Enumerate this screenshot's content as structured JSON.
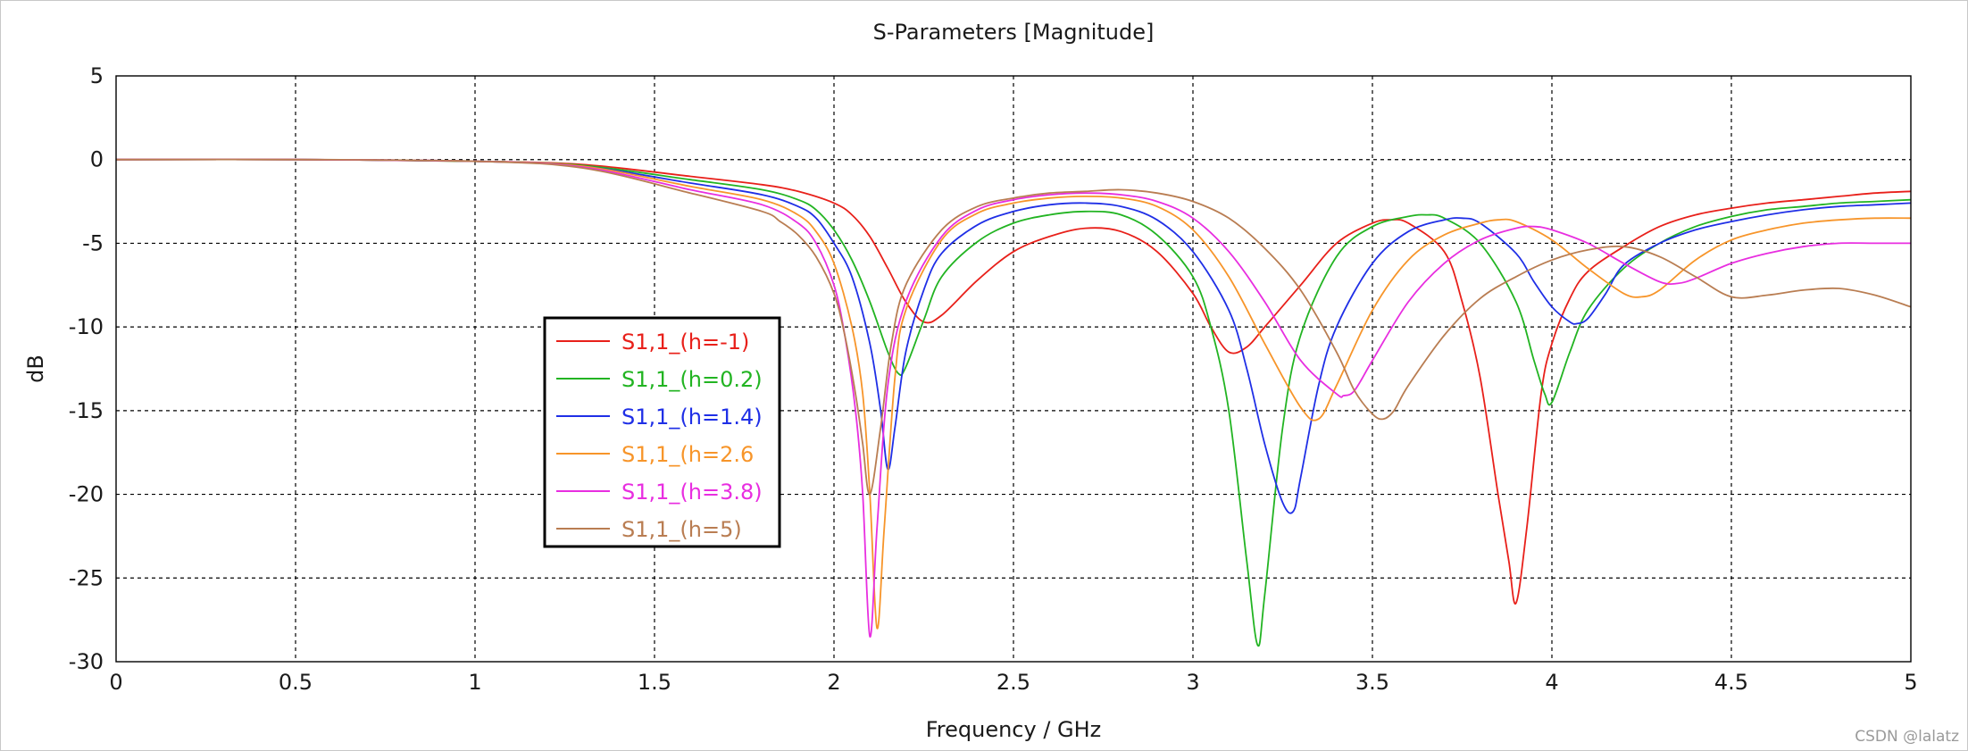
{
  "chart_data": {
    "type": "line",
    "title": "S-Parameters [Magnitude]",
    "xlabel": "Frequency / GHz",
    "ylabel": "dB",
    "xlim": [
      0,
      5
    ],
    "ylim": [
      -30,
      5
    ],
    "xticks": [
      0,
      0.5,
      1,
      1.5,
      2,
      2.5,
      3,
      3.5,
      4,
      4.5,
      5
    ],
    "xtick_labels": [
      "0",
      "0.5",
      "1",
      "1.5",
      "2",
      "2.5",
      "3",
      "3.5",
      "4",
      "4.5",
      "5"
    ],
    "yticks": [
      5,
      0,
      -5,
      -10,
      -15,
      -20,
      -25,
      -30
    ],
    "ytick_labels": [
      "5",
      "0",
      "-5",
      "-10",
      "-15",
      "-20",
      "-25",
      "-30"
    ],
    "grid": true,
    "legend_position": "left-middle",
    "series": [
      {
        "name": "S1,1_(h=-1)",
        "color": "#e8201a",
        "x": [
          0,
          0.5,
          1.0,
          1.3,
          1.6,
          1.8,
          1.9,
          2.0,
          2.05,
          2.1,
          2.15,
          2.2,
          2.25,
          2.3,
          2.4,
          2.5,
          2.6,
          2.7,
          2.8,
          2.9,
          3.0,
          3.05,
          3.1,
          3.15,
          3.2,
          3.3,
          3.4,
          3.5,
          3.55,
          3.6,
          3.7,
          3.75,
          3.8,
          3.85,
          3.88,
          3.9,
          3.93,
          3.97,
          4.0,
          4.05,
          4.1,
          4.2,
          4.3,
          4.4,
          4.5,
          4.6,
          4.7,
          4.8,
          4.9,
          5.0
        ],
        "y": [
          0,
          0,
          -0.1,
          -0.3,
          -1.0,
          -1.5,
          -1.9,
          -2.6,
          -3.3,
          -4.6,
          -6.5,
          -8.5,
          -9.7,
          -9.3,
          -7.2,
          -5.5,
          -4.6,
          -4.1,
          -4.3,
          -5.5,
          -8.0,
          -10.0,
          -11.5,
          -11.2,
          -10.0,
          -7.5,
          -5.0,
          -3.8,
          -3.6,
          -3.8,
          -5.5,
          -8.5,
          -13.0,
          -20.0,
          -24.0,
          -26.5,
          -22.0,
          -14.0,
          -11.0,
          -8.3,
          -6.7,
          -5.2,
          -4.0,
          -3.3,
          -2.9,
          -2.6,
          -2.4,
          -2.2,
          -2.0,
          -1.9
        ]
      },
      {
        "name": "S1,1_(h=0.2)",
        "color": "#22b422",
        "x": [
          0,
          0.5,
          1.0,
          1.3,
          1.6,
          1.8,
          1.9,
          1.95,
          2.0,
          2.05,
          2.1,
          2.15,
          2.18,
          2.2,
          2.25,
          2.3,
          2.4,
          2.5,
          2.6,
          2.7,
          2.8,
          2.9,
          3.0,
          3.05,
          3.1,
          3.15,
          3.18,
          3.2,
          3.25,
          3.3,
          3.4,
          3.5,
          3.6,
          3.65,
          3.7,
          3.8,
          3.9,
          3.95,
          3.98,
          4.0,
          4.05,
          4.1,
          4.2,
          4.3,
          4.4,
          4.5,
          4.6,
          4.7,
          4.8,
          4.9,
          5.0
        ],
        "y": [
          0,
          0,
          -0.1,
          -0.35,
          -1.2,
          -1.8,
          -2.4,
          -3.0,
          -4.2,
          -6.0,
          -8.5,
          -11.5,
          -12.8,
          -12.4,
          -9.6,
          -7.0,
          -4.9,
          -3.8,
          -3.3,
          -3.1,
          -3.3,
          -4.5,
          -7.0,
          -10.0,
          -15.0,
          -24.0,
          -29.0,
          -26.0,
          -16.0,
          -10.5,
          -5.8,
          -4.0,
          -3.4,
          -3.3,
          -3.5,
          -5.0,
          -8.5,
          -12.0,
          -14.0,
          -14.5,
          -11.5,
          -9.0,
          -6.5,
          -5.0,
          -4.0,
          -3.4,
          -3.0,
          -2.8,
          -2.6,
          -2.5,
          -2.4
        ]
      },
      {
        "name": "S1,1_(h=1.4)",
        "color": "#1f2fe6",
        "x": [
          0,
          0.5,
          1.0,
          1.3,
          1.6,
          1.8,
          1.9,
          1.95,
          2.0,
          2.05,
          2.1,
          2.13,
          2.15,
          2.17,
          2.2,
          2.25,
          2.3,
          2.4,
          2.5,
          2.6,
          2.7,
          2.8,
          2.9,
          3.0,
          3.1,
          3.15,
          3.2,
          3.25,
          3.28,
          3.3,
          3.35,
          3.4,
          3.5,
          3.6,
          3.7,
          3.75,
          3.8,
          3.9,
          3.95,
          4.0,
          4.05,
          4.07,
          4.1,
          4.15,
          4.2,
          4.3,
          4.4,
          4.5,
          4.6,
          4.7,
          4.8,
          4.9,
          5.0
        ],
        "y": [
          0,
          0,
          -0.1,
          -0.4,
          -1.4,
          -2.1,
          -2.8,
          -3.5,
          -5.0,
          -7.0,
          -11.0,
          -15.0,
          -18.5,
          -16.0,
          -11.5,
          -7.8,
          -5.6,
          -3.9,
          -3.1,
          -2.7,
          -2.6,
          -2.8,
          -3.6,
          -5.5,
          -9.0,
          -12.5,
          -17.0,
          -20.5,
          -21.0,
          -19.0,
          -13.5,
          -10.0,
          -6.2,
          -4.3,
          -3.6,
          -3.5,
          -3.8,
          -5.6,
          -7.3,
          -8.8,
          -9.7,
          -9.8,
          -9.5,
          -8.0,
          -6.3,
          -5.0,
          -4.2,
          -3.7,
          -3.3,
          -3.0,
          -2.8,
          -2.7,
          -2.6
        ]
      },
      {
        "name": "S1,1_(h=2.6",
        "color": "#f7952a",
        "x": [
          0,
          0.5,
          1.0,
          1.3,
          1.6,
          1.8,
          1.9,
          1.95,
          2.0,
          2.05,
          2.08,
          2.1,
          2.12,
          2.14,
          2.17,
          2.2,
          2.3,
          2.4,
          2.5,
          2.6,
          2.7,
          2.8,
          2.9,
          3.0,
          3.1,
          3.2,
          3.3,
          3.35,
          3.4,
          3.5,
          3.6,
          3.7,
          3.8,
          3.85,
          3.9,
          4.0,
          4.1,
          4.2,
          4.25,
          4.3,
          4.4,
          4.5,
          4.6,
          4.7,
          4.8,
          4.9,
          5.0
        ],
        "y": [
          0,
          0,
          -0.1,
          -0.4,
          -1.6,
          -2.4,
          -3.3,
          -4.3,
          -6.2,
          -10.0,
          -14.0,
          -20.0,
          -28.0,
          -22.0,
          -13.0,
          -9.0,
          -4.8,
          -3.2,
          -2.6,
          -2.3,
          -2.2,
          -2.3,
          -2.8,
          -4.2,
          -7.0,
          -11.0,
          -14.8,
          -15.5,
          -13.5,
          -9.0,
          -6.0,
          -4.5,
          -3.8,
          -3.6,
          -3.7,
          -4.8,
          -6.5,
          -8.0,
          -8.2,
          -7.8,
          -6.0,
          -4.8,
          -4.2,
          -3.8,
          -3.6,
          -3.5,
          -3.5
        ]
      },
      {
        "name": "S1,1_(h=3.8)",
        "color": "#e82ee0",
        "x": [
          0,
          0.5,
          1.0,
          1.3,
          1.6,
          1.8,
          1.9,
          1.95,
          2.0,
          2.03,
          2.06,
          2.08,
          2.1,
          2.12,
          2.15,
          2.2,
          2.3,
          2.4,
          2.5,
          2.6,
          2.7,
          2.8,
          2.9,
          3.0,
          3.1,
          3.2,
          3.3,
          3.4,
          3.42,
          3.45,
          3.5,
          3.6,
          3.7,
          3.8,
          3.9,
          3.95,
          4.0,
          4.1,
          4.2,
          4.3,
          4.35,
          4.4,
          4.5,
          4.6,
          4.7,
          4.8,
          4.9,
          5.0
        ],
        "y": [
          0,
          0,
          -0.1,
          -0.45,
          -1.8,
          -2.7,
          -3.8,
          -5.0,
          -7.5,
          -10.5,
          -15.0,
          -20.0,
          -28.5,
          -22.0,
          -13.5,
          -8.5,
          -4.6,
          -3.0,
          -2.4,
          -2.1,
          -2.0,
          -2.1,
          -2.5,
          -3.5,
          -5.5,
          -8.5,
          -12.0,
          -14.0,
          -14.1,
          -13.8,
          -12.0,
          -8.5,
          -6.2,
          -4.8,
          -4.1,
          -4.0,
          -4.2,
          -5.0,
          -6.2,
          -7.3,
          -7.4,
          -7.1,
          -6.2,
          -5.6,
          -5.2,
          -5.0,
          -5.0,
          -5.0
        ]
      },
      {
        "name": "S1,1_(h=5)",
        "color": "#b97d52",
        "x": [
          0,
          0.5,
          1.0,
          1.3,
          1.6,
          1.8,
          1.85,
          1.9,
          1.95,
          2.0,
          2.03,
          2.06,
          2.08,
          2.1,
          2.13,
          2.16,
          2.2,
          2.3,
          2.4,
          2.5,
          2.6,
          2.7,
          2.8,
          2.9,
          3.0,
          3.1,
          3.2,
          3.3,
          3.4,
          3.45,
          3.5,
          3.53,
          3.56,
          3.6,
          3.7,
          3.8,
          3.9,
          4.0,
          4.1,
          4.2,
          4.3,
          4.4,
          4.5,
          4.6,
          4.7,
          4.8,
          4.9,
          5.0
        ],
        "y": [
          0,
          0,
          -0.1,
          -0.5,
          -2.0,
          -3.1,
          -3.7,
          -4.5,
          -5.8,
          -8.0,
          -10.5,
          -14.0,
          -17.0,
          -20.0,
          -16.0,
          -11.0,
          -7.5,
          -4.2,
          -2.8,
          -2.3,
          -2.0,
          -1.9,
          -1.8,
          -2.0,
          -2.5,
          -3.5,
          -5.3,
          -7.8,
          -11.5,
          -13.8,
          -15.2,
          -15.5,
          -15.0,
          -13.5,
          -10.5,
          -8.3,
          -7.0,
          -6.0,
          -5.4,
          -5.2,
          -5.8,
          -7.0,
          -8.2,
          -8.1,
          -7.8,
          -7.7,
          -8.1,
          -8.8
        ]
      }
    ]
  },
  "watermark": "CSDN @lalatz"
}
